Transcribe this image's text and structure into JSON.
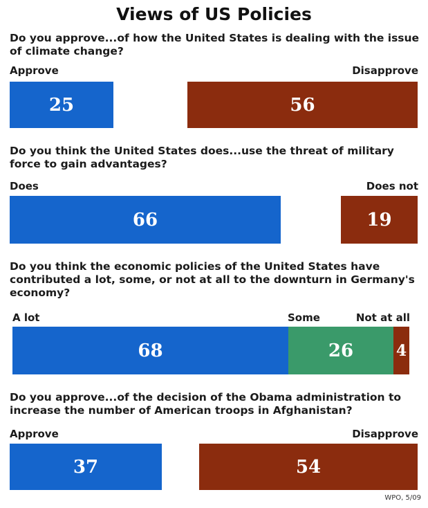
{
  "title": "Views of US Policies",
  "source": "WPO, 5/09",
  "colors": {
    "approve_blue": "#1565cc",
    "disapprove_brown": "#8b2c0e",
    "some_green": "#3a9a6a"
  },
  "chart_data": [
    {
      "type": "bar",
      "title": "Do you approve...of how the United States is dealing with the issue of climate change?",
      "categories": [
        "Approve",
        "Disapprove"
      ],
      "values": [
        25,
        56
      ]
    },
    {
      "type": "bar",
      "title": "Do you think the United States does...use the threat of military force to gain advantages?",
      "categories": [
        "Does",
        "Does not"
      ],
      "values": [
        66,
        19
      ]
    },
    {
      "type": "bar",
      "title": "Do you think the economic policies of the United States have contributed a lot, some, or not at all to the downturn in Germany's economy?",
      "categories": [
        "A lot",
        "Some",
        "Not at all"
      ],
      "values": [
        68,
        26,
        4
      ]
    },
    {
      "type": "bar",
      "title": "Do you approve...of the decision of the Obama administration to increase the number of American troops in Afghanistan?",
      "categories": [
        "Approve",
        "Disapprove"
      ],
      "values": [
        37,
        54
      ]
    }
  ]
}
